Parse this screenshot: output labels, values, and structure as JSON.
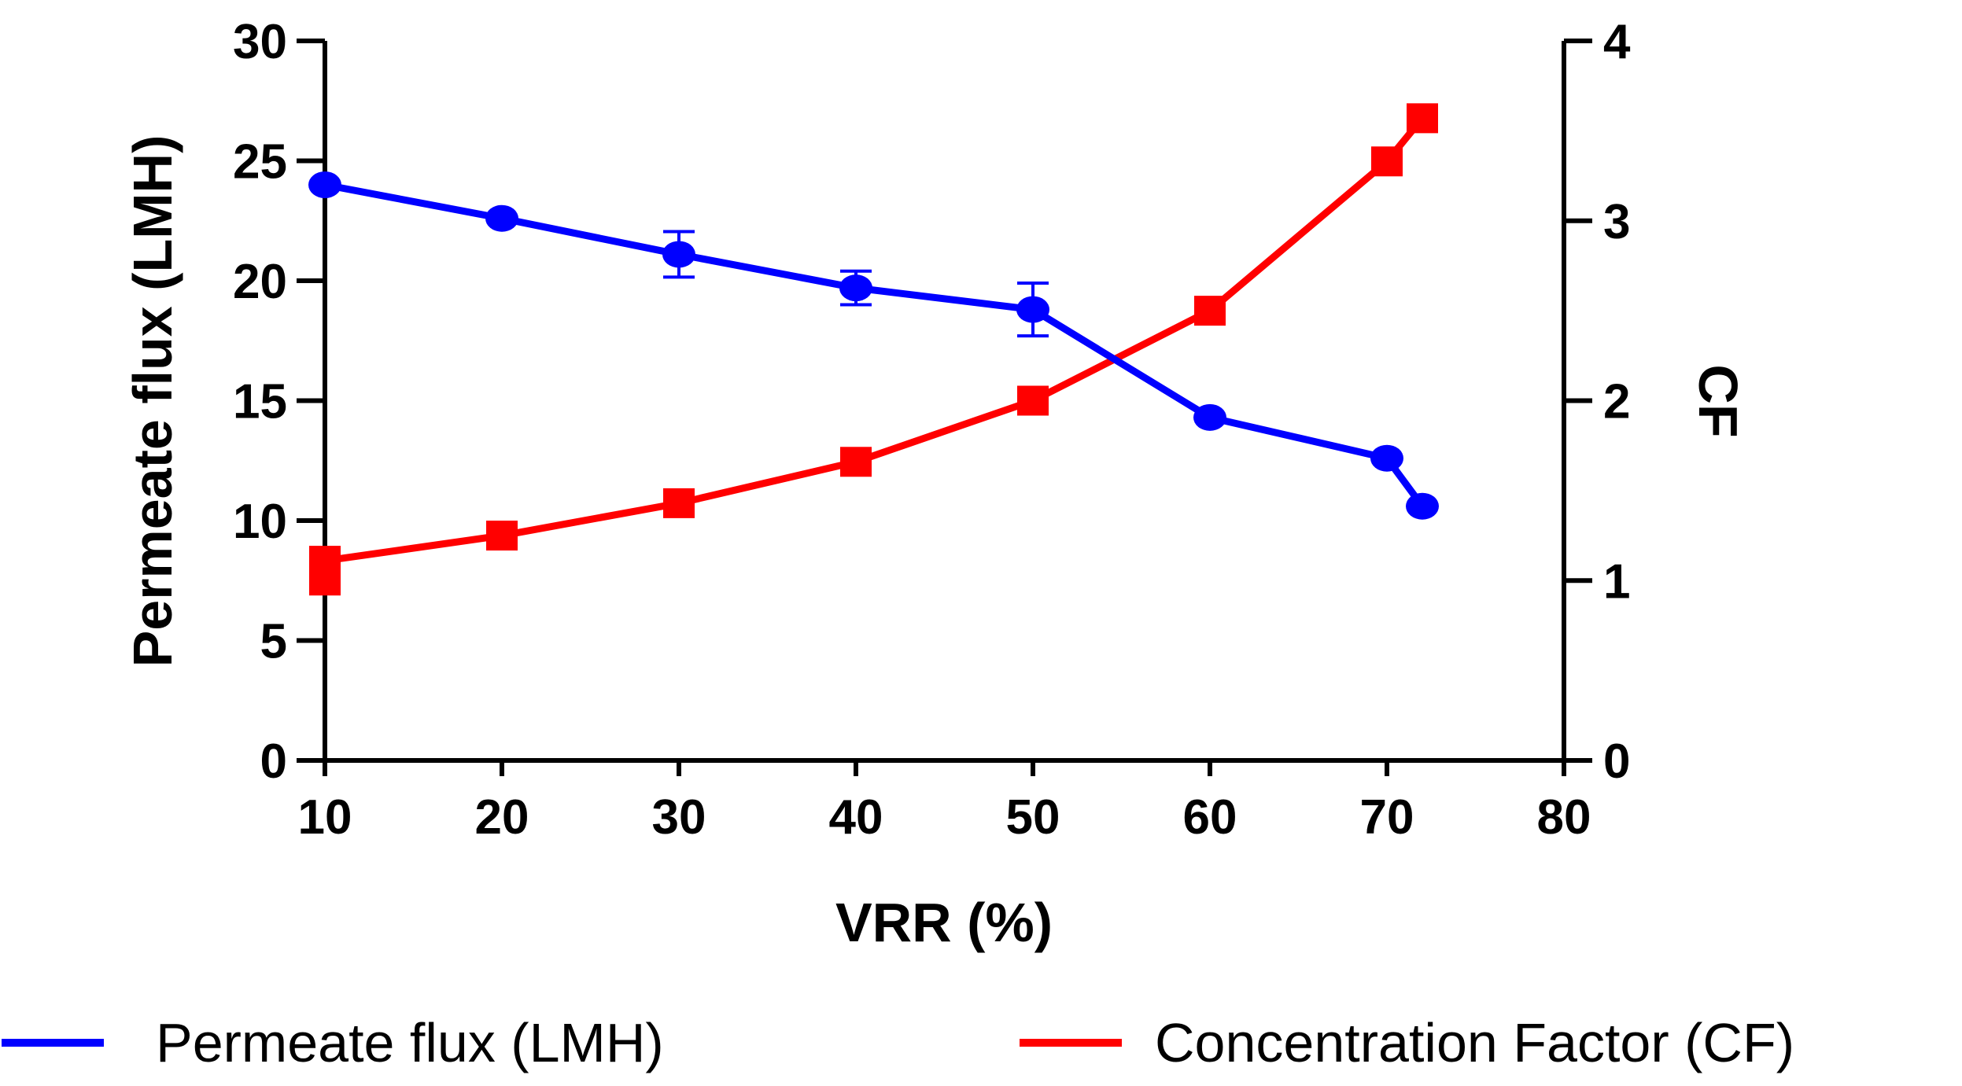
{
  "chart_data": {
    "type": "line",
    "xlabel": "VRR (%)",
    "ylabel": "Permeate flux  (LMH)",
    "y2label": "CF",
    "xlim": [
      10,
      80
    ],
    "ylim": [
      0,
      30
    ],
    "y2lim": [
      0,
      4
    ],
    "xticks": [
      10,
      20,
      30,
      40,
      50,
      60,
      70,
      80
    ],
    "yticks": [
      0,
      5,
      10,
      15,
      20,
      25,
      30
    ],
    "y2ticks": [
      0,
      1,
      2,
      3,
      4
    ],
    "legend_position": "bottom",
    "series": [
      {
        "name": "Permeate flux (LMH)",
        "axis": "left",
        "color": "#0000ff",
        "marker": "circle",
        "x": [
          10,
          20,
          30,
          40,
          50,
          60,
          70,
          72
        ],
        "y": [
          24.0,
          22.6,
          21.1,
          19.7,
          18.8,
          14.3,
          12.6,
          10.6
        ],
        "error": [
          0,
          0,
          0.95,
          0.7,
          1.1,
          0,
          0,
          0
        ]
      },
      {
        "name": "Concentration Factor (CF)",
        "axis": "right",
        "color": "#ff0000",
        "marker": "square",
        "x": [
          10,
          10,
          20,
          30,
          40,
          50,
          60,
          70,
          72
        ],
        "y": [
          1.0,
          1.11,
          1.25,
          1.43,
          1.66,
          2.0,
          2.5,
          3.33,
          3.57
        ]
      }
    ]
  }
}
